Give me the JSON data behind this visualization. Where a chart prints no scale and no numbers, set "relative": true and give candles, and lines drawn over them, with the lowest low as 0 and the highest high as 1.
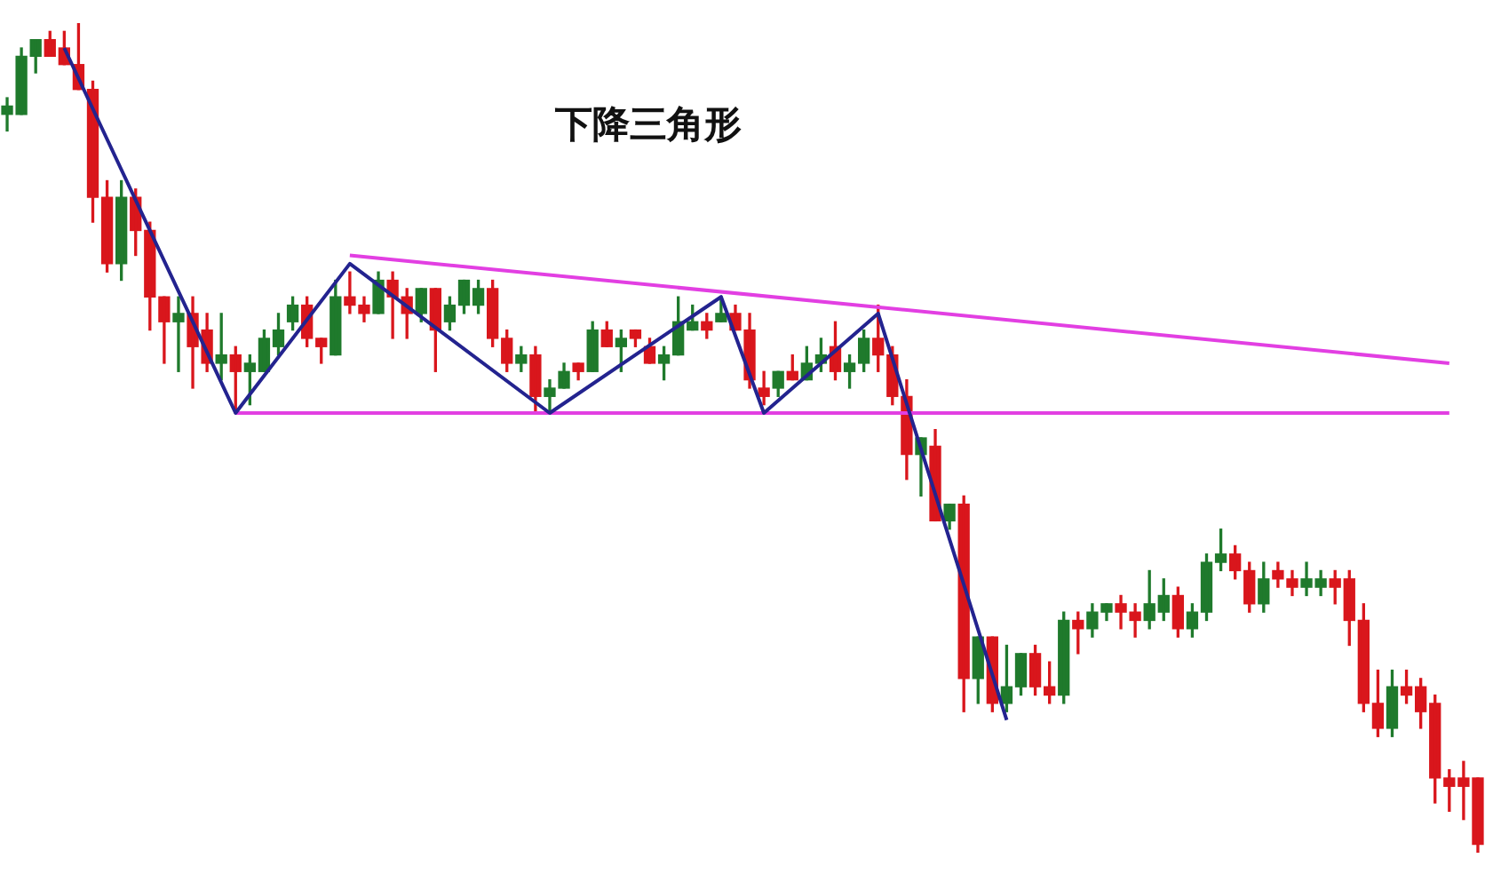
{
  "chart_data": {
    "type": "candlestick",
    "title": "下降三角形",
    "relative": true,
    "categories": [
      null,
      null,
      null,
      null,
      null,
      null,
      null,
      null,
      null,
      null,
      null,
      null,
      null,
      null,
      null,
      null,
      null,
      null,
      null,
      null,
      null,
      null,
      null,
      null,
      null,
      null,
      null,
      null,
      null,
      null,
      null,
      null,
      null,
      null,
      null,
      null,
      null,
      null,
      null,
      null,
      null,
      null,
      null,
      null,
      null,
      null,
      null,
      null,
      null,
      null,
      null,
      null,
      null,
      null,
      null,
      null,
      null,
      null,
      null,
      null,
      null,
      null,
      null,
      null,
      null,
      null,
      null,
      null,
      null,
      null,
      null,
      null,
      null,
      null,
      null,
      null,
      null,
      null,
      null,
      null,
      null,
      null,
      null,
      null,
      null,
      null,
      null,
      null,
      null,
      null,
      null,
      null,
      null,
      null,
      null,
      null,
      null,
      null,
      null,
      null,
      null,
      null,
      null,
      null
    ],
    "ohlc": [
      [
        0.89,
        0.91,
        0.87,
        0.9
      ],
      [
        0.89,
        0.97,
        0.89,
        0.96
      ],
      [
        0.96,
        0.98,
        0.94,
        0.98
      ],
      [
        0.98,
        0.99,
        0.96,
        0.96
      ],
      [
        0.97,
        0.99,
        0.95,
        0.95
      ],
      [
        0.95,
        1,
        0.92,
        0.92
      ],
      [
        0.92,
        0.93,
        0.76,
        0.79
      ],
      [
        0.79,
        0.81,
        0.7,
        0.71
      ],
      [
        0.71,
        0.81,
        0.69,
        0.79
      ],
      [
        0.79,
        0.8,
        0.72,
        0.75
      ],
      [
        0.75,
        0.76,
        0.63,
        0.67
      ],
      [
        0.67,
        0.67,
        0.59,
        0.64
      ],
      [
        0.64,
        0.67,
        0.58,
        0.65
      ],
      [
        0.65,
        0.67,
        0.56,
        0.61
      ],
      [
        0.63,
        0.65,
        0.58,
        0.59
      ],
      [
        0.59,
        0.65,
        0.57,
        0.6
      ],
      [
        0.6,
        0.61,
        0.53,
        0.58
      ],
      [
        0.58,
        0.6,
        0.54,
        0.59
      ],
      [
        0.58,
        0.63,
        0.58,
        0.62
      ],
      [
        0.61,
        0.65,
        0.6,
        0.63
      ],
      [
        0.64,
        0.67,
        0.63,
        0.66
      ],
      [
        0.66,
        0.67,
        0.61,
        0.62
      ],
      [
        0.62,
        0.62,
        0.59,
        0.61
      ],
      [
        0.6,
        0.69,
        0.6,
        0.67
      ],
      [
        0.67,
        0.7,
        0.65,
        0.66
      ],
      [
        0.66,
        0.67,
        0.64,
        0.65
      ],
      [
        0.65,
        0.7,
        0.65,
        0.69
      ],
      [
        0.69,
        0.7,
        0.62,
        0.67
      ],
      [
        0.67,
        0.68,
        0.62,
        0.65
      ],
      [
        0.65,
        0.68,
        0.64,
        0.68
      ],
      [
        0.68,
        0.68,
        0.58,
        0.63
      ],
      [
        0.64,
        0.67,
        0.63,
        0.66
      ],
      [
        0.66,
        0.69,
        0.65,
        0.69
      ],
      [
        0.66,
        0.69,
        0.65,
        0.68
      ],
      [
        0.68,
        0.69,
        0.61,
        0.62
      ],
      [
        0.62,
        0.63,
        0.58,
        0.59
      ],
      [
        0.59,
        0.61,
        0.58,
        0.6
      ],
      [
        0.6,
        0.61,
        0.53,
        0.55
      ],
      [
        0.55,
        0.57,
        0.53,
        0.56
      ],
      [
        0.56,
        0.59,
        0.56,
        0.58
      ],
      [
        0.59,
        0.59,
        0.57,
        0.58
      ],
      [
        0.58,
        0.64,
        0.58,
        0.63
      ],
      [
        0.63,
        0.64,
        0.61,
        0.61
      ],
      [
        0.61,
        0.63,
        0.58,
        0.62
      ],
      [
        0.63,
        0.63,
        0.61,
        0.62
      ],
      [
        0.61,
        0.62,
        0.59,
        0.59
      ],
      [
        0.59,
        0.61,
        0.57,
        0.6
      ],
      [
        0.6,
        0.67,
        0.6,
        0.64
      ],
      [
        0.63,
        0.66,
        0.63,
        0.64
      ],
      [
        0.64,
        0.65,
        0.62,
        0.63
      ],
      [
        0.64,
        0.67,
        0.64,
        0.65
      ],
      [
        0.65,
        0.66,
        0.63,
        0.63
      ],
      [
        0.63,
        0.65,
        0.56,
        0.57
      ],
      [
        0.56,
        0.58,
        0.54,
        0.55
      ],
      [
        0.56,
        0.58,
        0.55,
        0.58
      ],
      [
        0.58,
        0.6,
        0.57,
        0.57
      ],
      [
        0.57,
        0.61,
        0.57,
        0.59
      ],
      [
        0.59,
        0.62,
        0.58,
        0.6
      ],
      [
        0.61,
        0.64,
        0.57,
        0.58
      ],
      [
        0.58,
        0.6,
        0.56,
        0.59
      ],
      [
        0.59,
        0.63,
        0.58,
        0.62
      ],
      [
        0.62,
        0.66,
        0.58,
        0.6
      ],
      [
        0.6,
        0.61,
        0.54,
        0.55
      ],
      [
        0.55,
        0.57,
        0.45,
        0.48
      ],
      [
        0.48,
        0.5,
        0.43,
        0.5
      ],
      [
        0.49,
        0.51,
        0.4,
        0.4
      ],
      [
        0.4,
        0.42,
        0.39,
        0.42
      ],
      [
        0.42,
        0.43,
        0.17,
        0.21
      ],
      [
        0.21,
        0.26,
        0.18,
        0.26
      ],
      [
        0.26,
        0.26,
        0.17,
        0.18
      ],
      [
        0.18,
        0.25,
        0.17,
        0.2
      ],
      [
        0.2,
        0.24,
        0.19,
        0.24
      ],
      [
        0.24,
        0.25,
        0.19,
        0.2
      ],
      [
        0.2,
        0.23,
        0.18,
        0.19
      ],
      [
        0.19,
        0.29,
        0.18,
        0.28
      ],
      [
        0.28,
        0.29,
        0.24,
        0.27
      ],
      [
        0.27,
        0.3,
        0.26,
        0.29
      ],
      [
        0.29,
        0.3,
        0.28,
        0.3
      ],
      [
        0.3,
        0.31,
        0.27,
        0.29
      ],
      [
        0.29,
        0.3,
        0.26,
        0.28
      ],
      [
        0.28,
        0.34,
        0.27,
        0.3
      ],
      [
        0.29,
        0.33,
        0.28,
        0.31
      ],
      [
        0.31,
        0.32,
        0.26,
        0.27
      ],
      [
        0.27,
        0.3,
        0.26,
        0.29
      ],
      [
        0.29,
        0.36,
        0.28,
        0.35
      ],
      [
        0.35,
        0.39,
        0.34,
        0.36
      ],
      [
        0.36,
        0.37,
        0.33,
        0.34
      ],
      [
        0.34,
        0.35,
        0.29,
        0.3
      ],
      [
        0.3,
        0.35,
        0.29,
        0.33
      ],
      [
        0.34,
        0.35,
        0.32,
        0.33
      ],
      [
        0.33,
        0.34,
        0.31,
        0.32
      ],
      [
        0.32,
        0.35,
        0.31,
        0.33
      ],
      [
        0.32,
        0.34,
        0.31,
        0.33
      ],
      [
        0.33,
        0.34,
        0.3,
        0.32
      ],
      [
        0.33,
        0.34,
        0.25,
        0.28
      ],
      [
        0.28,
        0.3,
        0.17,
        0.18
      ],
      [
        0.18,
        0.22,
        0.14,
        0.15
      ],
      [
        0.15,
        0.22,
        0.14,
        0.2
      ],
      [
        0.2,
        0.22,
        0.18,
        0.19
      ],
      [
        0.2,
        0.21,
        0.15,
        0.17
      ],
      [
        0.18,
        0.19,
        0.06,
        0.09
      ],
      [
        0.09,
        0.1,
        0.05,
        0.08
      ],
      [
        0.09,
        0.11,
        0.04,
        0.08
      ],
      [
        0.09,
        0.09,
        0,
        0.01
      ]
    ],
    "colors": [
      "#1f7a2c",
      "#1f7a2c",
      "#1f7a2c",
      "#d9161c",
      "#d9161c",
      "#d9161c",
      "#d9161c",
      "#d9161c",
      "#1f7a2c",
      "#d9161c",
      "#d9161c",
      "#d9161c",
      "#1f7a2c",
      "#d9161c",
      "#d9161c",
      "#1f7a2c",
      "#d9161c",
      "#1f7a2c",
      "#1f7a2c",
      "#1f7a2c",
      "#1f7a2c",
      "#d9161c",
      "#d9161c",
      "#1f7a2c",
      "#d9161c",
      "#d9161c",
      "#1f7a2c",
      "#d9161c",
      "#d9161c",
      "#1f7a2c",
      "#d9161c",
      "#1f7a2c",
      "#1f7a2c",
      "#1f7a2c",
      "#d9161c",
      "#d9161c",
      "#1f7a2c",
      "#d9161c",
      "#1f7a2c",
      "#1f7a2c",
      "#d9161c",
      "#1f7a2c",
      "#d9161c",
      "#1f7a2c",
      "#d9161c",
      "#d9161c",
      "#1f7a2c",
      "#1f7a2c",
      "#1f7a2c",
      "#d9161c",
      "#1f7a2c",
      "#d9161c",
      "#d9161c",
      "#d9161c",
      "#1f7a2c",
      "#d9161c",
      "#1f7a2c",
      "#1f7a2c",
      "#d9161c",
      "#1f7a2c",
      "#1f7a2c",
      "#d9161c",
      "#d9161c",
      "#d9161c",
      "#1f7a2c",
      "#d9161c",
      "#1f7a2c",
      "#d9161c",
      "#1f7a2c",
      "#d9161c",
      "#1f7a2c",
      "#1f7a2c",
      "#d9161c",
      "#d9161c",
      "#1f7a2c",
      "#d9161c",
      "#1f7a2c",
      "#1f7a2c",
      "#d9161c",
      "#d9161c",
      "#1f7a2c",
      "#1f7a2c",
      "#d9161c",
      "#1f7a2c",
      "#1f7a2c",
      "#1f7a2c",
      "#d9161c",
      "#d9161c",
      "#1f7a2c",
      "#d9161c",
      "#d9161c",
      "#1f7a2c",
      "#1f7a2c",
      "#d9161c",
      "#d9161c",
      "#d9161c",
      "#d9161c",
      "#1f7a2c",
      "#d9161c",
      "#d9161c",
      "#d9161c",
      "#d9161c",
      "#d9161c",
      "#d9161c"
    ],
    "series": [
      {
        "type": "line",
        "color": "#23238f",
        "values": [
          null,
          null,
          null,
          null,
          0.97,
          null,
          null,
          null,
          null,
          null,
          null,
          null,
          null,
          null,
          null,
          null,
          0.53,
          null,
          null,
          null,
          null,
          null,
          null,
          null,
          0.71,
          null,
          null,
          null,
          null,
          null,
          null,
          null,
          null,
          null,
          null,
          null,
          null,
          null,
          0.53,
          null,
          null,
          null,
          null,
          null,
          null,
          null,
          null,
          null,
          null,
          null,
          0.67,
          null,
          null,
          0.53,
          null,
          null,
          null,
          null,
          null,
          null,
          null,
          0.65,
          null,
          null,
          null,
          null,
          null,
          null,
          null,
          null,
          0.16,
          null,
          null,
          null,
          null,
          null,
          null,
          null,
          null,
          null,
          null,
          null,
          null,
          null,
          null,
          null,
          null,
          null,
          null,
          null,
          null,
          null,
          null,
          null,
          null,
          null,
          null,
          null,
          null,
          null,
          null,
          null,
          null,
          null
        ]
      },
      {
        "type": "line",
        "color": "#e23fe2",
        "values": [
          null,
          null,
          null,
          null,
          null,
          null,
          null,
          null,
          null,
          null,
          null,
          null,
          null,
          null,
          null,
          null,
          null,
          null,
          null,
          null,
          null,
          null,
          null,
          null,
          0.72,
          null,
          null,
          null,
          null,
          null,
          null,
          null,
          null,
          null,
          null,
          null,
          null,
          null,
          null,
          null,
          null,
          null,
          null,
          null,
          null,
          null,
          null,
          null,
          null,
          null,
          null,
          null,
          null,
          null,
          null,
          null,
          null,
          null,
          null,
          null,
          null,
          null,
          null,
          null,
          null,
          null,
          null,
          null,
          null,
          null,
          null,
          null,
          null,
          null,
          null,
          null,
          null,
          null,
          null,
          null,
          null,
          null,
          null,
          null,
          null,
          null,
          null,
          null,
          null,
          null,
          null,
          null,
          null,
          null,
          null,
          null,
          null,
          null,
          null,
          null,
          null,
          0.59,
          null,
          null
        ]
      },
      {
        "type": "line",
        "color": "#e23fe2",
        "values": [
          null,
          null,
          null,
          null,
          null,
          null,
          null,
          null,
          null,
          null,
          null,
          null,
          null,
          null,
          null,
          null,
          0.53,
          null,
          null,
          null,
          null,
          null,
          null,
          null,
          null,
          null,
          null,
          null,
          null,
          null,
          null,
          null,
          null,
          null,
          null,
          null,
          null,
          null,
          null,
          null,
          null,
          null,
          null,
          null,
          null,
          null,
          null,
          null,
          null,
          null,
          null,
          null,
          null,
          null,
          null,
          null,
          null,
          null,
          null,
          null,
          null,
          null,
          null,
          null,
          null,
          null,
          null,
          null,
          null,
          null,
          null,
          null,
          null,
          null,
          null,
          null,
          null,
          null,
          null,
          null,
          null,
          null,
          null,
          null,
          null,
          null,
          null,
          null,
          null,
          null,
          null,
          null,
          null,
          null,
          null,
          null,
          null,
          null,
          null,
          null,
          null,
          0.53,
          null,
          null
        ]
      }
    ]
  }
}
